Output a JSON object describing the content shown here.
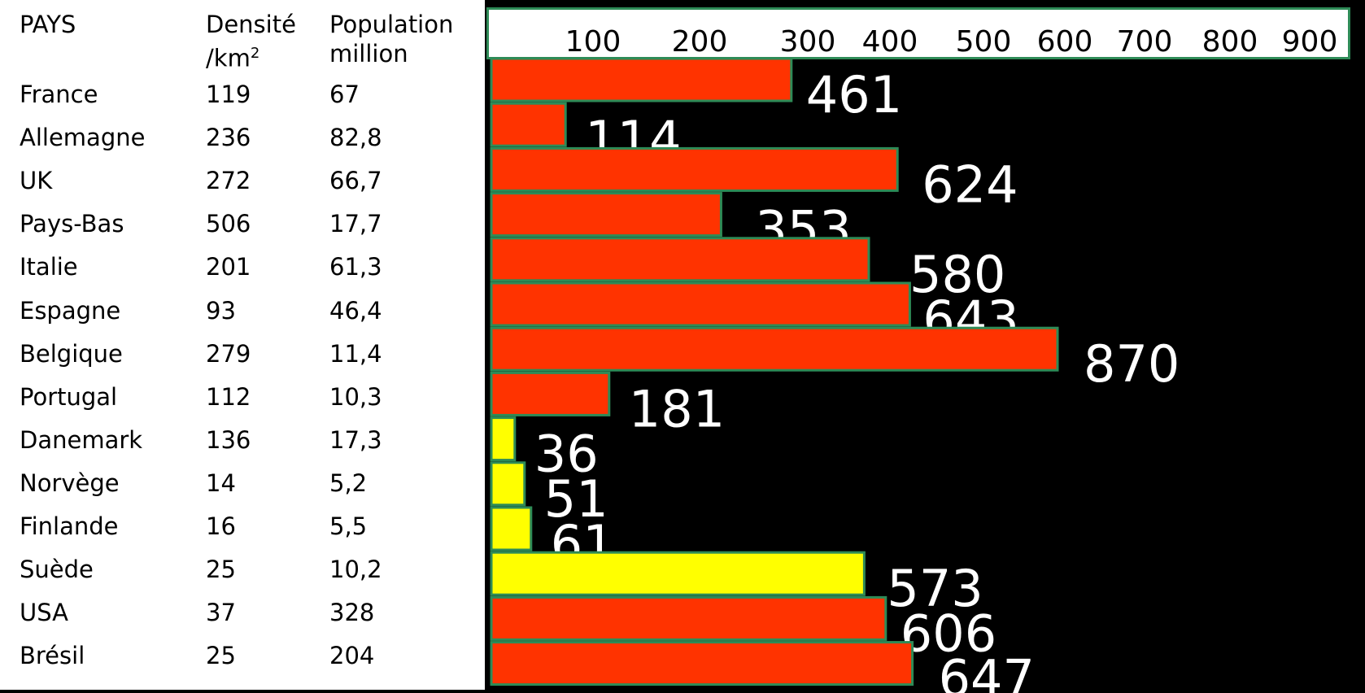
{
  "table": {
    "headers": {
      "country": "PAYS",
      "density_line1": "Densité",
      "density_line2": "/km",
      "density_sup": "2",
      "population_line1": "Population",
      "population_line2": "million"
    },
    "rows": [
      {
        "country": "France",
        "density": "119",
        "population": "67"
      },
      {
        "country": "Allemagne",
        "density": "236",
        "population": "82,8"
      },
      {
        "country": "UK",
        "density": "272",
        "population": "66,7"
      },
      {
        "country": "Pays-Bas",
        "density": "506",
        "population": "17,7"
      },
      {
        "country": "Italie",
        "density": "201",
        "population": "61,3"
      },
      {
        "country": "Espagne",
        "density": "93",
        "population": "46,4"
      },
      {
        "country": "Belgique",
        "density": "279",
        "population": "11,4"
      },
      {
        "country": "Portugal",
        "density": "112",
        "population": "10,3"
      },
      {
        "country": "Danemark",
        "density": "136",
        "population": "17,3"
      },
      {
        "country": "Norvège",
        "density": "14",
        "population": "5,2"
      },
      {
        "country": "Finlande",
        "density": "16",
        "population": "5,5"
      },
      {
        "country": "Suède",
        "density": "25",
        "population": "10,2"
      },
      {
        "country": "USA",
        "density": "37",
        "population": "328"
      },
      {
        "country": "Brésil",
        "density": "25",
        "population": "204"
      }
    ]
  },
  "chart_data": {
    "type": "bar",
    "orientation": "horizontal",
    "categories": [
      "France",
      "Allemagne",
      "UK",
      "Pays-Bas",
      "Italie",
      "Espagne",
      "Belgique",
      "Portugal",
      "Danemark",
      "Norvège",
      "Finlande",
      "Suède",
      "USA",
      "Brésil"
    ],
    "values": [
      461,
      114,
      624,
      353,
      580,
      643,
      870,
      181,
      36,
      51,
      61,
      573,
      606,
      647
    ],
    "value_labels": [
      "461",
      "114",
      "624",
      "353",
      "580",
      "643",
      "870",
      "181",
      "36",
      "51",
      "61",
      "573",
      "606",
      "647"
    ],
    "bar_colors": [
      "#ff3300",
      "#ff3300",
      "#ff3300",
      "#ff3300",
      "#ff3300",
      "#ff3300",
      "#ff3300",
      "#ff3300",
      "#ffff00",
      "#ffff00",
      "#ffff00",
      "#ffff00",
      "#ff3300",
      "#ff3300"
    ],
    "x_ticks": [
      "100",
      "200",
      "300",
      "400",
      "500",
      "600",
      "700",
      "800",
      "900"
    ],
    "xlim": [
      0,
      900
    ],
    "axis_position": "top",
    "grid": false,
    "legend": "none",
    "title": "",
    "xlabel": "",
    "ylabel": ""
  },
  "colors": {
    "background": "#000000",
    "bar_red": "#ff3300",
    "bar_yellow": "#ffff00",
    "bar_border": "#2e8b57",
    "value_label": "#ffffff"
  }
}
